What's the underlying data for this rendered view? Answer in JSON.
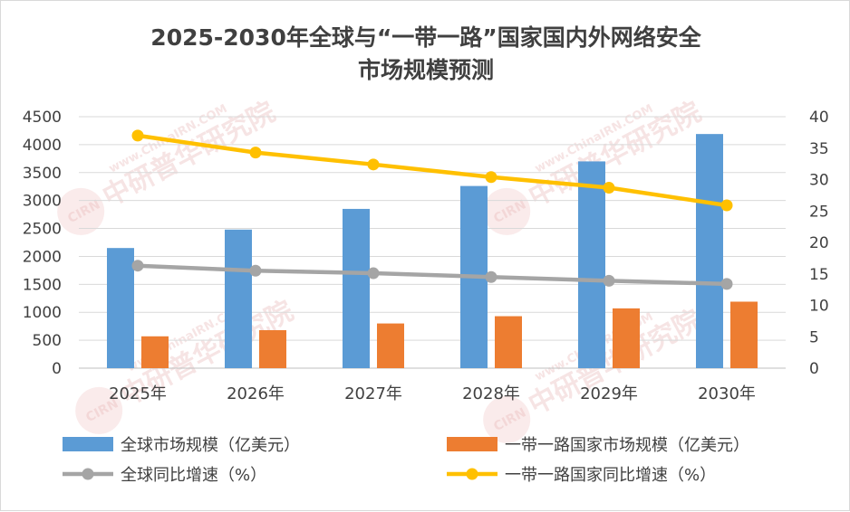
{
  "chart_data": {
    "type": "bar",
    "title_lines": [
      "2025-2030年全球与“一带一路”国家国内外网络安全",
      "市场规模预测"
    ],
    "categories": [
      "2025年",
      "2026年",
      "2027年",
      "2028年",
      "2029年",
      "2030年"
    ],
    "y_left": {
      "ylim": [
        0,
        4500
      ],
      "ticks": [
        0,
        500,
        1000,
        1500,
        2000,
        2500,
        3000,
        3500,
        4000,
        4500
      ]
    },
    "y_right": {
      "ylim": [
        0,
        40
      ],
      "ticks": [
        0,
        5,
        10,
        15,
        20,
        25,
        30,
        35,
        40
      ]
    },
    "grid": true,
    "legend_position": "bottom",
    "series": [
      {
        "name": "全球市场规模（亿美元）",
        "type": "bar",
        "axis": "left",
        "color": "#5b9bd5",
        "values": [
          2150,
          2480,
          2850,
          3260,
          3700,
          4190
        ]
      },
      {
        "name": "一带一路国家市场规模（亿美元）",
        "type": "bar",
        "axis": "left",
        "color": "#ed7d31",
        "values": [
          570,
          680,
          800,
          930,
          1070,
          1190
        ]
      },
      {
        "name": "全球同比增速（%）",
        "type": "line",
        "axis": "right",
        "color": "#a5a5a5",
        "values": [
          16.3,
          15.5,
          15.1,
          14.5,
          13.9,
          13.4
        ]
      },
      {
        "name": "一带一路国家同比增速（%）",
        "type": "line",
        "axis": "right",
        "color": "#ffc000",
        "values": [
          37.0,
          34.3,
          32.4,
          30.4,
          28.7,
          25.9
        ]
      }
    ]
  },
  "watermark": {
    "logo": "CIRN",
    "text": "中研普华研究院",
    "url": "www.ChinaIRN.COM"
  }
}
